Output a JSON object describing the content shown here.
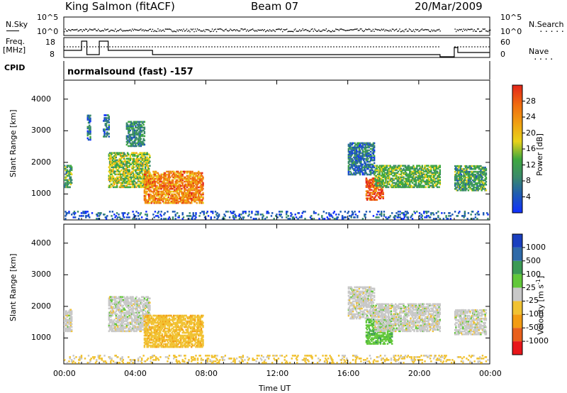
{
  "header": {
    "station": "King Salmon (fitACF)",
    "beam": "Beam 07",
    "date": "20/Mar/2009"
  },
  "top_panels": {
    "nsky_label": "N.Sky",
    "nsky_ticks": [
      "10^5",
      "10^0"
    ],
    "nsearch_label": "N.Search",
    "nsearch_ticks": [
      "10^5",
      "10^0"
    ],
    "freq_label_1": "Freq.",
    "freq_label_2": "[MHz]",
    "freq_ticks": [
      "18",
      "8"
    ],
    "nave_label": "Nave",
    "nave_ticks": [
      "60",
      "0"
    ],
    "cpid_label": "CPID",
    "cpid_text": "normalsound (fast) -157"
  },
  "time_axis": {
    "ticks": [
      "00:00",
      "04:00",
      "08:00",
      "12:00",
      "16:00",
      "20:00",
      "00:00"
    ],
    "label": "Time UT"
  },
  "chart_data": [
    {
      "type": "heatmap",
      "panel": "power",
      "ylabel": "Slant Range [km]",
      "yticks": [
        1000,
        2000,
        3000,
        4000
      ],
      "ylim": [
        180,
        4600
      ],
      "xlim": [
        0,
        24
      ],
      "colorbar": {
        "label": "Power [dB]",
        "ticks": [
          "4",
          "8",
          "12",
          "16",
          "20",
          "24",
          "28"
        ],
        "colors": [
          "#1030ff",
          "#1f5ab5",
          "#3a8a6a",
          "#3fa83f",
          "#e8d21a",
          "#f0a012",
          "#f06e0f",
          "#e3261a"
        ]
      },
      "echo_regions": [
        {
          "t": [
            0.0,
            0.4
          ],
          "range": [
            1200,
            1900
          ],
          "level": 12
        },
        {
          "t": [
            1.3,
            1.5
          ],
          "range": [
            2700,
            3500
          ],
          "level": 8
        },
        {
          "t": [
            2.2,
            2.5
          ],
          "range": [
            2800,
            3500
          ],
          "level": 8
        },
        {
          "t": [
            2.5,
            4.8
          ],
          "range": [
            1200,
            2300
          ],
          "level": 16
        },
        {
          "t": [
            3.5,
            4.5
          ],
          "range": [
            2500,
            3300
          ],
          "level": 10
        },
        {
          "t": [
            4.5,
            7.8
          ],
          "range": [
            700,
            1700
          ],
          "level": 24
        },
        {
          "t": [
            16.0,
            17.5
          ],
          "range": [
            1600,
            2600
          ],
          "level": 8
        },
        {
          "t": [
            17.0,
            18.0
          ],
          "range": [
            800,
            1500
          ],
          "level": 28
        },
        {
          "t": [
            17.5,
            21.2
          ],
          "range": [
            1200,
            1900
          ],
          "level": 14
        },
        {
          "t": [
            22.0,
            23.8
          ],
          "range": [
            1100,
            1900
          ],
          "level": 12
        },
        {
          "t": [
            0.0,
            23.9
          ],
          "range": [
            200,
            450
          ],
          "level": 6
        }
      ]
    },
    {
      "type": "heatmap",
      "panel": "velocity",
      "ylabel": "Slant Range [km]",
      "yticks": [
        1000,
        2000,
        3000,
        4000
      ],
      "ylim": [
        180,
        4600
      ],
      "xlim": [
        0,
        24
      ],
      "colorbar": {
        "label": "Velocity [m s^-1]",
        "ticks": [
          "1000",
          "500",
          "100",
          "25",
          "-25",
          "-100",
          "-500",
          "-1000"
        ],
        "colors": [
          "#1a3fbf",
          "#2f6aa8",
          "#3b9a55",
          "#62c83a",
          "#c8c8c8",
          "#f1c232",
          "#f39c12",
          "#e8601c",
          "#e8161a"
        ]
      },
      "echo_regions": [
        {
          "t": [
            0.0,
            0.4
          ],
          "range": [
            1200,
            1900
          ],
          "velocity": 0
        },
        {
          "t": [
            2.5,
            4.8
          ],
          "range": [
            1200,
            2300
          ],
          "velocity": 0
        },
        {
          "t": [
            4.5,
            7.8
          ],
          "range": [
            700,
            1700
          ],
          "velocity": -80
        },
        {
          "t": [
            16.0,
            17.5
          ],
          "range": [
            1600,
            2600
          ],
          "velocity": 0
        },
        {
          "t": [
            17.0,
            18.5
          ],
          "range": [
            800,
            1600
          ],
          "velocity": 80
        },
        {
          "t": [
            17.5,
            21.2
          ],
          "range": [
            1200,
            2100
          ],
          "velocity": 0
        },
        {
          "t": [
            22.0,
            23.8
          ],
          "range": [
            1100,
            1900
          ],
          "velocity": 0
        },
        {
          "t": [
            0.0,
            23.9
          ],
          "range": [
            200,
            450
          ],
          "velocity": -40
        }
      ]
    }
  ]
}
